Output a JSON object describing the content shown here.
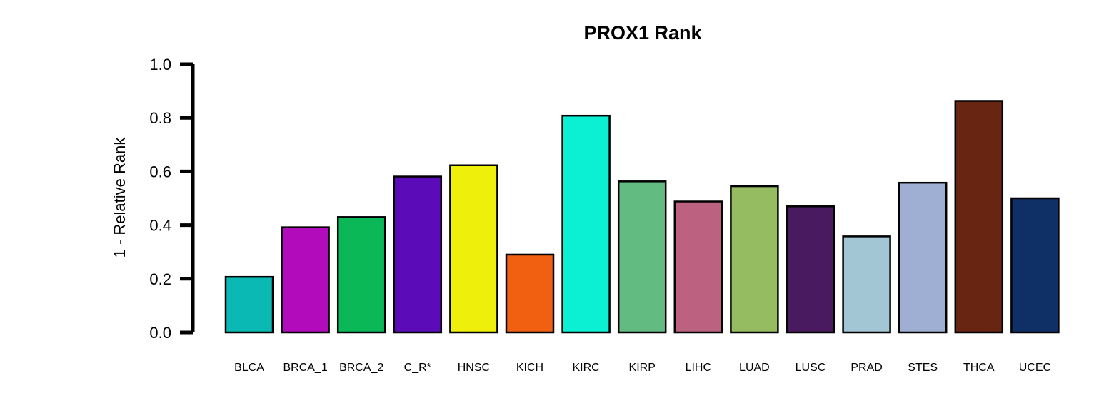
{
  "chart_data": {
    "type": "bar",
    "title": "PROX1 Rank",
    "ylabel": "1 - Relative Rank",
    "xlabel": "",
    "ylim": [
      0,
      1
    ],
    "yticks": [
      "0.0",
      "0.2",
      "0.4",
      "0.6",
      "0.8",
      "1.0"
    ],
    "grid": false,
    "categories": [
      "BLCA",
      "BRCA_1",
      "BRCA_2",
      "C_R*",
      "HNSC",
      "KICH",
      "KIRC",
      "KIRP",
      "LIHC",
      "LUAD",
      "LUSC",
      "PRAD",
      "STES",
      "THCA",
      "UCEC"
    ],
    "values": [
      0.207,
      0.392,
      0.43,
      0.581,
      0.623,
      0.29,
      0.808,
      0.563,
      0.488,
      0.545,
      0.47,
      0.358,
      0.558,
      0.863,
      0.5
    ],
    "colors": [
      "#0bb9b4",
      "#b20bbb",
      "#0bb857",
      "#5c0bb8",
      "#eeef0b",
      "#f16011",
      "#0bf0d2",
      "#62bb81",
      "#bc6280",
      "#96bc62",
      "#4a1a60",
      "#a2c6d3",
      "#9faed3",
      "#672512",
      "#0f2f67"
    ]
  }
}
